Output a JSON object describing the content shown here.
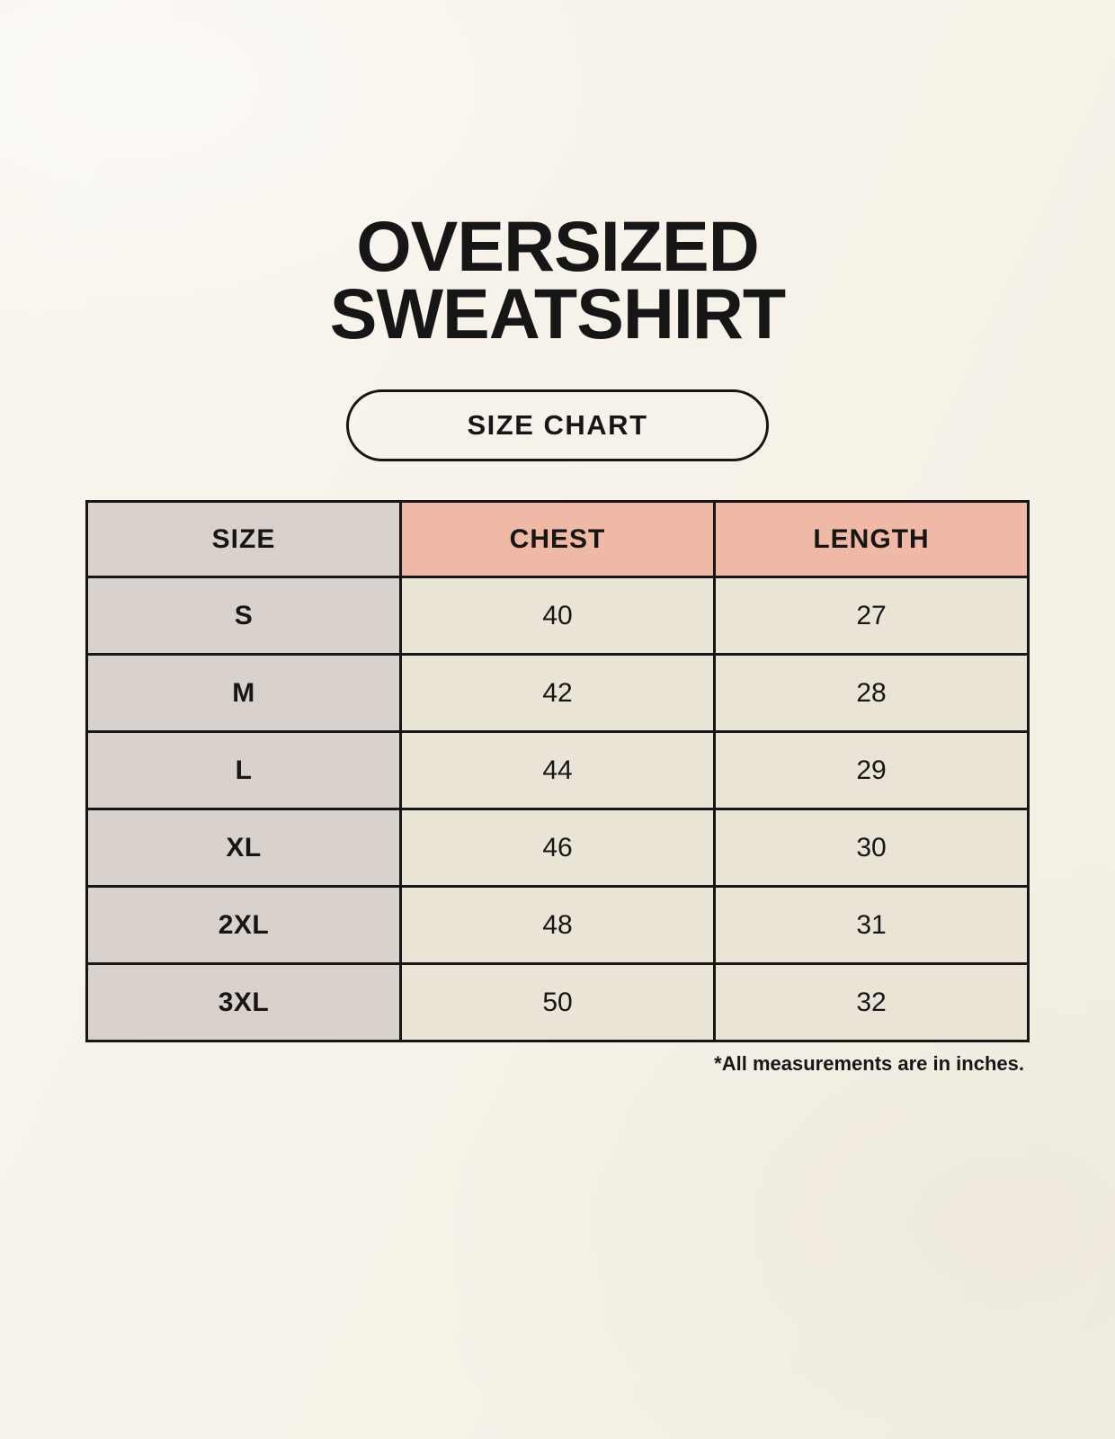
{
  "page": {
    "title_line1": "OVERSIZED",
    "title_line2": "SWEATSHIRT",
    "size_chart_button": "SIZE CHART",
    "footnote": "*All measurements are in inches."
  },
  "chart_data": {
    "type": "table",
    "title": "OVERSIZED SWEATSHIRT SIZE CHART",
    "columns": [
      "SIZE",
      "CHEST",
      "LENGTH"
    ],
    "rows": [
      [
        "S",
        40,
        27
      ],
      [
        "M",
        42,
        28
      ],
      [
        "L",
        44,
        29
      ],
      [
        "XL",
        46,
        30
      ],
      [
        "2XL",
        48,
        31
      ],
      [
        "3XL",
        50,
        32
      ]
    ],
    "units": "inches"
  },
  "colors": {
    "background": "#F7F3EA",
    "header_accent": "#F0B9A5",
    "size_column": "#D9D2CC",
    "cell": "#EAE4D7",
    "border": "#161616",
    "text": "#161616"
  }
}
